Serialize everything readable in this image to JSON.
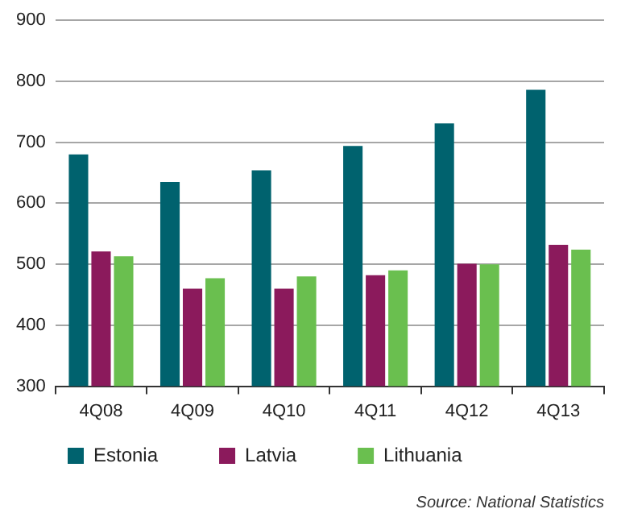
{
  "chart_data": {
    "type": "bar",
    "categories": [
      "4Q08",
      "4Q09",
      "4Q10",
      "4Q11",
      "4Q12",
      "4Q13"
    ],
    "series": [
      {
        "name": "Estonia",
        "color": "#00626e",
        "values": [
          680,
          635,
          654,
          694,
          731,
          786
        ]
      },
      {
        "name": "Latvia",
        "color": "#8b1a5c",
        "values": [
          521,
          460,
          460,
          482,
          501,
          532
        ]
      },
      {
        "name": "Lithuania",
        "color": "#6abf4f",
        "values": [
          513,
          477,
          480,
          490,
          500,
          524
        ]
      }
    ],
    "ylim": [
      300,
      900
    ],
    "yticks": [
      300,
      400,
      500,
      600,
      700,
      800,
      900
    ],
    "grid": "y",
    "legend": "bottom",
    "annotations": [
      "Source: National Statistics"
    ]
  }
}
